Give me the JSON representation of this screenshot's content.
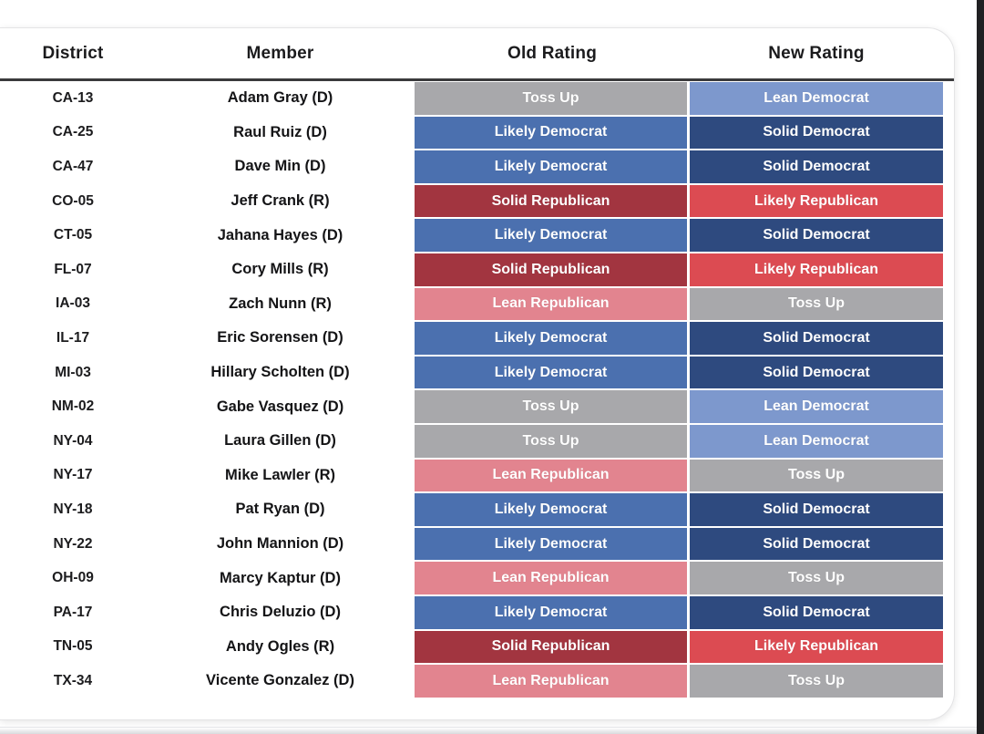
{
  "chart_data": {
    "type": "table",
    "columns": [
      "District",
      "Member",
      "Old Rating",
      "New Rating"
    ],
    "rows": [
      {
        "district": "CA-13",
        "member": "Adam Gray (D)",
        "old": {
          "label": "Toss Up",
          "type": "tossup"
        },
        "new": {
          "label": "Lean Democrat",
          "type": "lean_dem"
        }
      },
      {
        "district": "CA-25",
        "member": "Raul Ruiz (D)",
        "old": {
          "label": "Likely Democrat",
          "type": "likely_dem"
        },
        "new": {
          "label": "Solid Democrat",
          "type": "solid_dem"
        }
      },
      {
        "district": "CA-47",
        "member": "Dave Min (D)",
        "old": {
          "label": "Likely Democrat",
          "type": "likely_dem"
        },
        "new": {
          "label": "Solid Democrat",
          "type": "solid_dem"
        }
      },
      {
        "district": "CO-05",
        "member": "Jeff Crank (R)",
        "old": {
          "label": "Solid Republican",
          "type": "solid_rep"
        },
        "new": {
          "label": "Likely Republican",
          "type": "likely_rep"
        }
      },
      {
        "district": "CT-05",
        "member": "Jahana Hayes (D)",
        "old": {
          "label": "Likely Democrat",
          "type": "likely_dem"
        },
        "new": {
          "label": "Solid Democrat",
          "type": "solid_dem"
        }
      },
      {
        "district": "FL-07",
        "member": "Cory Mills (R)",
        "old": {
          "label": "Solid Republican",
          "type": "solid_rep"
        },
        "new": {
          "label": "Likely Republican",
          "type": "likely_rep"
        }
      },
      {
        "district": "IA-03",
        "member": "Zach Nunn (R)",
        "old": {
          "label": "Lean Republican",
          "type": "lean_rep"
        },
        "new": {
          "label": "Toss Up",
          "type": "tossup"
        }
      },
      {
        "district": "IL-17",
        "member": "Eric Sorensen (D)",
        "old": {
          "label": "Likely Democrat",
          "type": "likely_dem"
        },
        "new": {
          "label": "Solid Democrat",
          "type": "solid_dem"
        }
      },
      {
        "district": "MI-03",
        "member": "Hillary Scholten (D)",
        "old": {
          "label": "Likely Democrat",
          "type": "likely_dem"
        },
        "new": {
          "label": "Solid Democrat",
          "type": "solid_dem"
        }
      },
      {
        "district": "NM-02",
        "member": "Gabe Vasquez (D)",
        "old": {
          "label": "Toss Up",
          "type": "tossup"
        },
        "new": {
          "label": "Lean Democrat",
          "type": "lean_dem"
        }
      },
      {
        "district": "NY-04",
        "member": "Laura Gillen (D)",
        "old": {
          "label": "Toss Up",
          "type": "tossup"
        },
        "new": {
          "label": "Lean Democrat",
          "type": "lean_dem"
        }
      },
      {
        "district": "NY-17",
        "member": "Mike Lawler (R)",
        "old": {
          "label": "Lean Republican",
          "type": "lean_rep"
        },
        "new": {
          "label": "Toss Up",
          "type": "tossup",
          "faded": true
        }
      },
      {
        "district": "NY-18",
        "member": "Pat Ryan (D)",
        "old": {
          "label": "Likely Democrat",
          "type": "likely_dem"
        },
        "new": {
          "label": "Solid Democrat",
          "type": "solid_dem"
        }
      },
      {
        "district": "NY-22",
        "member": "John Mannion (D)",
        "old": {
          "label": "Likely Democrat",
          "type": "likely_dem"
        },
        "new": {
          "label": "Solid Democrat",
          "type": "solid_dem"
        }
      },
      {
        "district": "OH-09",
        "member": "Marcy Kaptur (D)",
        "old": {
          "label": "Lean Republican",
          "type": "lean_rep"
        },
        "new": {
          "label": "Toss Up",
          "type": "tossup"
        }
      },
      {
        "district": "PA-17",
        "member": "Chris Deluzio (D)",
        "old": {
          "label": "Likely Democrat",
          "type": "likely_dem"
        },
        "new": {
          "label": "Solid Democrat",
          "type": "solid_dem"
        }
      },
      {
        "district": "TN-05",
        "member": "Andy Ogles (R)",
        "old": {
          "label": "Solid Republican",
          "type": "solid_rep"
        },
        "new": {
          "label": "Likely Republican",
          "type": "likely_rep"
        }
      },
      {
        "district": "TX-34",
        "member": "Vicente Gonzalez (D)",
        "old": {
          "label": "Lean Republican",
          "type": "lean_rep"
        },
        "new": {
          "label": "Toss Up",
          "type": "tossup"
        }
      }
    ],
    "rating_colors": {
      "tossup": "#A8A8AB",
      "lean_dem": "#7D98CD",
      "likely_dem": "#4B70AF",
      "solid_dem": "#2E4A7F",
      "lean_rep": "#E2848F",
      "likely_rep": "#DC4B52",
      "solid_rep": "#A23540"
    },
    "rating_text_color": "#FFFFFF"
  }
}
